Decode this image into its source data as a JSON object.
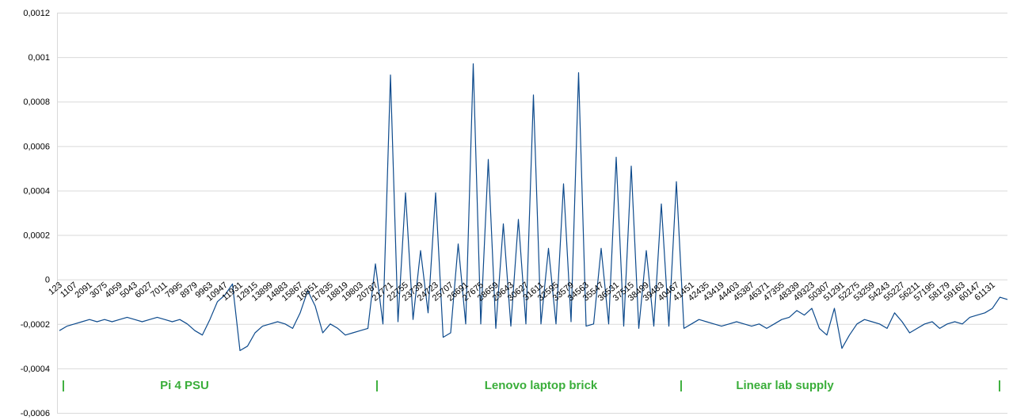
{
  "chart_data": {
    "type": "line",
    "categories": [
      123,
      null,
      1107,
      null,
      2091,
      null,
      3075,
      null,
      4059,
      null,
      5043,
      null,
      6027,
      null,
      7011,
      null,
      7995,
      null,
      8979,
      null,
      9963,
      null,
      10947,
      null,
      11931,
      null,
      12915,
      null,
      13899,
      null,
      14883,
      null,
      15867,
      null,
      16851,
      null,
      17835,
      null,
      18819,
      null,
      19803,
      null,
      20787,
      null,
      21771,
      null,
      22755,
      null,
      23739,
      null,
      24723,
      null,
      25707,
      null,
      26691,
      null,
      27675,
      null,
      28659,
      null,
      29643,
      null,
      30627,
      null,
      31611,
      null,
      32595,
      null,
      33579,
      null,
      34563,
      null,
      35547,
      null,
      36531,
      null,
      37515,
      null,
      38499,
      null,
      39483,
      null,
      40467,
      null,
      41451,
      null,
      42435,
      null,
      43419,
      null,
      44403,
      null,
      45387,
      null,
      46371,
      null,
      47355,
      null,
      48339,
      null,
      49323,
      null,
      50307,
      null,
      51291,
      null,
      52275,
      null,
      53259,
      null,
      54243,
      null,
      55227,
      null,
      56211,
      null,
      57195,
      null,
      58179,
      null,
      59163,
      null,
      60147,
      null,
      61131,
      null,
      null
    ],
    "values": [
      -0.00023,
      -0.00021,
      -0.0002,
      -0.00019,
      -0.00018,
      -0.00019,
      -0.00018,
      -0.00019,
      -0.00018,
      -0.00017,
      -0.00018,
      -0.00019,
      -0.00018,
      -0.00017,
      -0.00018,
      -0.00019,
      -0.00018,
      -0.0002,
      -0.00023,
      -0.00025,
      -0.00018,
      -0.0001,
      -7e-05,
      -2e-05,
      -0.00032,
      -0.0003,
      -0.00024,
      -0.00021,
      -0.0002,
      -0.00019,
      -0.0002,
      -0.00022,
      -0.00015,
      -5e-05,
      -0.00012,
      -0.00024,
      -0.0002,
      -0.00022,
      -0.00025,
      -0.00024,
      -0.00023,
      -0.00022,
      7e-05,
      -0.0002,
      0.00092,
      -0.00019,
      0.00039,
      -0.00018,
      0.00013,
      -0.00015,
      0.00039,
      -0.00026,
      -0.00024,
      0.00016,
      -0.0002,
      0.00097,
      -0.0002,
      0.00054,
      -0.00022,
      0.00025,
      -0.00021,
      0.00027,
      -0.0002,
      0.00083,
      -0.0002,
      0.00014,
      -0.0002,
      0.00043,
      -0.00019,
      0.00093,
      -0.00021,
      -0.0002,
      0.00014,
      -0.0002,
      0.00055,
      -0.00021,
      0.00051,
      -0.00022,
      0.00013,
      -0.00021,
      0.00034,
      -0.00021,
      0.00044,
      -0.00022,
      -0.0002,
      -0.00018,
      -0.00019,
      -0.0002,
      -0.00021,
      -0.0002,
      -0.00019,
      -0.0002,
      -0.00021,
      -0.0002,
      -0.00022,
      -0.0002,
      -0.00018,
      -0.00017,
      -0.00014,
      -0.00016,
      -0.00013,
      -0.00022,
      -0.00025,
      -0.00013,
      -0.00031,
      -0.00025,
      -0.0002,
      -0.00018,
      -0.00019,
      -0.0002,
      -0.00022,
      -0.00015,
      -0.00019,
      -0.00024,
      -0.00022,
      -0.0002,
      -0.00019,
      -0.00022,
      -0.0002,
      -0.00019,
      -0.0002,
      -0.00017,
      -0.00016,
      -0.00015,
      -0.00013,
      -8e-05,
      -9e-05
    ],
    "color": "#0d4a8c",
    "ylim": [
      -0.0006,
      0.0012
    ],
    "yticks": [
      {
        "value": -0.0006,
        "label": "-0,0006"
      },
      {
        "value": -0.0004,
        "label": "-0,0004"
      },
      {
        "value": -0.0002,
        "label": "-0,0002"
      },
      0,
      {
        "value": 0.0002,
        "label": "0,0002"
      },
      {
        "value": 0.0004,
        "label": "0,0004"
      },
      {
        "value": 0.0006,
        "label": "0,0006"
      },
      {
        "value": 0.0008,
        "label": "0,0008"
      },
      {
        "value": 0.001,
        "label": "0,001"
      },
      {
        "value": 0.0012,
        "label": "0,0012"
      }
    ],
    "grid": true,
    "annotations": [
      "|",
      "Pi 4 PSU",
      "|",
      "Lenovo laptop brick",
      "|",
      "Linear lab supply",
      "|"
    ],
    "annotation_color": "#3aae3a"
  }
}
